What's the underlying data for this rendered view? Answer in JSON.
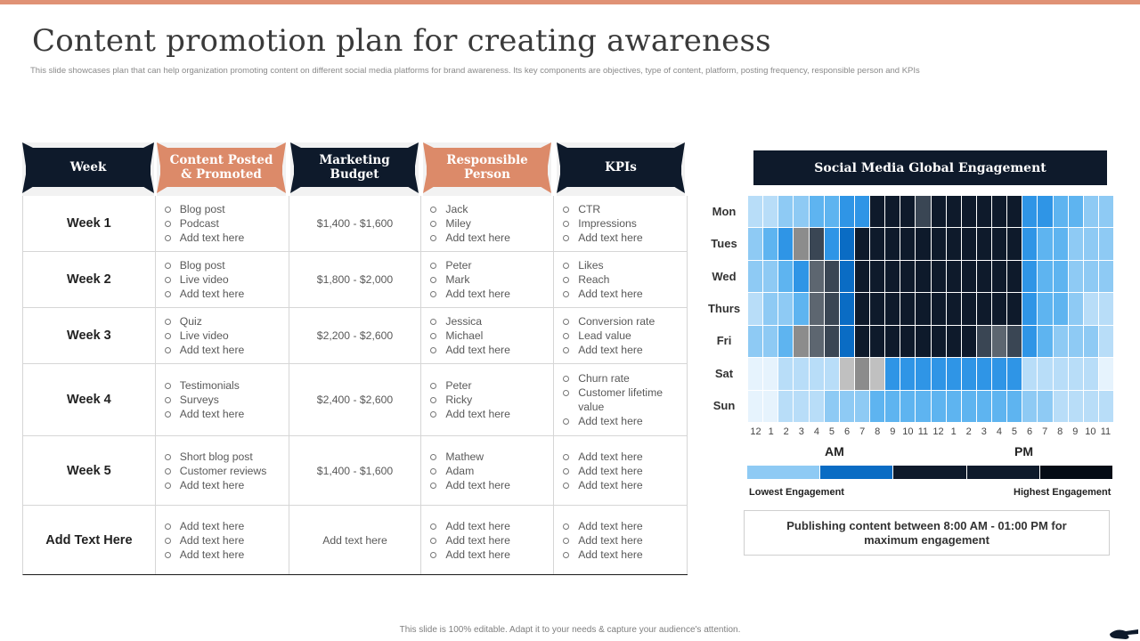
{
  "slide": {
    "title": "Content promotion plan for creating awareness",
    "subtitle": "This slide showcases plan that can help organization promoting content on different social media platforms for brand awareness. Its key components are objectives, type of content, platform, posting frequency, responsible person and KPIs",
    "footer": "This slide is 100% editable.  Adapt it to your needs & capture your audience's attention.",
    "accent_color": "#e09276",
    "navy_color": "#0e1a2b",
    "orange_color": "#dc8a69"
  },
  "table": {
    "headers": [
      "Week",
      "Content Posted & Promoted",
      "Marketing Budget",
      "Responsible Person",
      "KPIs"
    ],
    "rows": [
      {
        "week": "Week 1",
        "content": [
          "Blog post",
          "Podcast",
          "Add text here"
        ],
        "budget": "$1,400 - $1,600",
        "person": [
          "Jack",
          "Miley",
          "Add text here"
        ],
        "kpis": [
          "CTR",
          "Impressions",
          "Add text here"
        ]
      },
      {
        "week": "Week 2",
        "content": [
          "Blog post",
          "Live video",
          "Add text here"
        ],
        "budget": "$1,800 - $2,000",
        "person": [
          "Peter",
          "Mark",
          "Add text here"
        ],
        "kpis": [
          "Likes",
          "Reach",
          "Add text here"
        ]
      },
      {
        "week": "Week 3",
        "content": [
          "Quiz",
          "Live video",
          "Add text here"
        ],
        "budget": "$2,200 - $2,600",
        "person": [
          "Jessica",
          "Michael",
          "Add text here"
        ],
        "kpis": [
          "Conversion rate",
          "Lead value",
          "Add text here"
        ]
      },
      {
        "week": "Week 4",
        "content": [
          "Testimonials",
          "Surveys",
          "Add text here"
        ],
        "budget": "$2,400 - $2,600",
        "person": [
          "Peter",
          "Ricky",
          "Add text here"
        ],
        "kpis": [
          "Churn rate",
          "Customer lifetime value",
          "Add text here"
        ]
      },
      {
        "week": "Week 5",
        "content": [
          "Short blog post",
          "Customer reviews",
          "Add text here"
        ],
        "budget": "$1,400 - $1,600",
        "person": [
          "Mathew",
          "Adam",
          "Add text here"
        ],
        "kpis": [
          "Add text here",
          "Add text here",
          "Add text here"
        ]
      },
      {
        "week": "Add  Text Here",
        "content": [
          "Add text here",
          "Add text here",
          "Add text here"
        ],
        "budget": "Add text here",
        "person": [
          "Add text here",
          "Add text here",
          "Add text here"
        ],
        "kpis": [
          "Add text here",
          "Add text here",
          "Add text here"
        ]
      }
    ]
  },
  "chart_data": {
    "type": "heatmap",
    "title": "Social Media Global Engagement",
    "y_categories": [
      "Mon",
      "Tues",
      "Wed",
      "Thurs",
      "Fri",
      "Sat",
      "Sun"
    ],
    "x_categories": [
      "12",
      "1",
      "2",
      "3",
      "4",
      "5",
      "6",
      "7",
      "8",
      "9",
      "10",
      "11",
      "12",
      "1",
      "2",
      "3",
      "4",
      "5",
      "6",
      "7",
      "8",
      "9",
      "10",
      "11"
    ],
    "x_group_labels": [
      "AM",
      "PM"
    ],
    "levels": [
      "#e6f3fd",
      "#b8ddf8",
      "#8ecaf4",
      "#5eb4f0",
      "#2f95e6",
      "#0a6cc4",
      "#c0c0c0",
      "#8c8c8c",
      "#5d6670",
      "#3a4654",
      "#0e1a2b",
      "#050c16"
    ],
    "values": [
      [
        1,
        1,
        2,
        2,
        3,
        3,
        4,
        4,
        10,
        10,
        10,
        9,
        10,
        10,
        10,
        10,
        10,
        10,
        4,
        4,
        3,
        3,
        2,
        2
      ],
      [
        2,
        3,
        4,
        7,
        9,
        4,
        5,
        10,
        10,
        10,
        10,
        10,
        10,
        10,
        10,
        10,
        10,
        10,
        4,
        3,
        3,
        2,
        2,
        2
      ],
      [
        2,
        2,
        3,
        4,
        8,
        9,
        5,
        10,
        10,
        10,
        10,
        10,
        10,
        10,
        10,
        10,
        10,
        10,
        4,
        3,
        3,
        2,
        2,
        2
      ],
      [
        1,
        2,
        2,
        3,
        8,
        9,
        5,
        10,
        10,
        10,
        10,
        10,
        10,
        10,
        10,
        10,
        10,
        10,
        4,
        3,
        3,
        2,
        1,
        1
      ],
      [
        2,
        2,
        3,
        7,
        8,
        9,
        5,
        10,
        10,
        10,
        10,
        10,
        10,
        10,
        10,
        9,
        8,
        9,
        4,
        3,
        2,
        2,
        2,
        1
      ],
      [
        0,
        0,
        1,
        1,
        1,
        1,
        6,
        7,
        6,
        4,
        4,
        4,
        4,
        4,
        4,
        4,
        4,
        4,
        1,
        1,
        1,
        1,
        1,
        0
      ],
      [
        0,
        0,
        1,
        1,
        1,
        2,
        2,
        2,
        3,
        3,
        3,
        3,
        3,
        3,
        3,
        3,
        3,
        3,
        2,
        2,
        1,
        1,
        1,
        1
      ]
    ],
    "legend": {
      "low_label": "Lowest Engagement",
      "high_label": "Highest Engagement",
      "colors": [
        "#8ecaf4",
        "#0a6cc4",
        "#0e1a2b",
        "#0e1a2b",
        "#050c16"
      ]
    },
    "note": "Publishing content between 8:00 AM - 01:00  PM for maximum engagement"
  }
}
